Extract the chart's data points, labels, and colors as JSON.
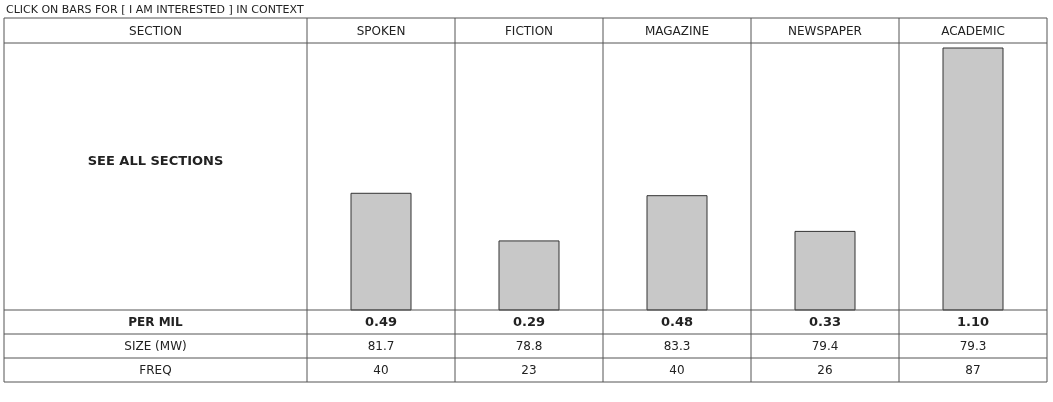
{
  "chart_data": {
    "type": "bar",
    "title": "CLICK ON BARS FOR [ I AM INTERESTED ] IN CONTEXT",
    "categories": [
      "SPOKEN",
      "FICTION",
      "MAGAZINE",
      "NEWSPAPER",
      "ACADEMIC"
    ],
    "values": [
      0.49,
      0.29,
      0.48,
      0.33,
      1.1
    ],
    "value_labels": [
      "0.49",
      "0.29",
      "0.48",
      "0.33",
      "1.10"
    ],
    "color": "#c8c8c8",
    "annotations": [
      "SECTION",
      "SEE ALL SECTIONS",
      "PER MIL",
      "SIZE (MW)",
      "FREQ",
      "81.7",
      "78.8",
      "83.3",
      "79.4",
      "79.3",
      "40",
      "23",
      "40",
      "26",
      "87"
    ]
  }
}
